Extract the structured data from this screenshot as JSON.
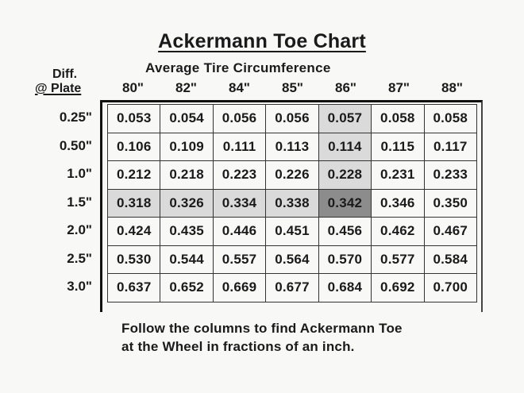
{
  "title": "Ackermann Toe Chart",
  "subtitle": "Average Tire Circumference",
  "corner": {
    "line1": "Diff.",
    "line2": "@ Plate"
  },
  "columns": [
    "80\"",
    "82\"",
    "84\"",
    "85\"",
    "86\"",
    "87\"",
    "88\""
  ],
  "rows": [
    {
      "label": "0.25\"",
      "values": [
        "0.053",
        "0.054",
        "0.056",
        "0.056",
        "0.057",
        "0.058",
        "0.058"
      ]
    },
    {
      "label": "0.50\"",
      "values": [
        "0.106",
        "0.109",
        "0.111",
        "0.113",
        "0.114",
        "0.115",
        "0.117"
      ]
    },
    {
      "label": "1.0\"",
      "values": [
        "0.212",
        "0.218",
        "0.223",
        "0.226",
        "0.228",
        "0.231",
        "0.233"
      ]
    },
    {
      "label": "1.5\"",
      "values": [
        "0.318",
        "0.326",
        "0.334",
        "0.338",
        "0.342",
        "0.346",
        "0.350"
      ]
    },
    {
      "label": "2.0\"",
      "values": [
        "0.424",
        "0.435",
        "0.446",
        "0.451",
        "0.456",
        "0.462",
        "0.467"
      ]
    },
    {
      "label": "2.5\"",
      "values": [
        "0.530",
        "0.544",
        "0.557",
        "0.564",
        "0.570",
        "0.577",
        "0.584"
      ]
    },
    {
      "label": "3.0\"",
      "values": [
        "0.637",
        "0.652",
        "0.669",
        "0.677",
        "0.684",
        "0.692",
        "0.700"
      ]
    }
  ],
  "highlight": {
    "column_index": 4,
    "row_index": 3,
    "color": "#dadada",
    "intersection_color": "#8c8c8c"
  },
  "footer": {
    "line1": "Follow the columns to find Ackermann Toe",
    "line2": "at the Wheel in fractions of an inch."
  }
}
